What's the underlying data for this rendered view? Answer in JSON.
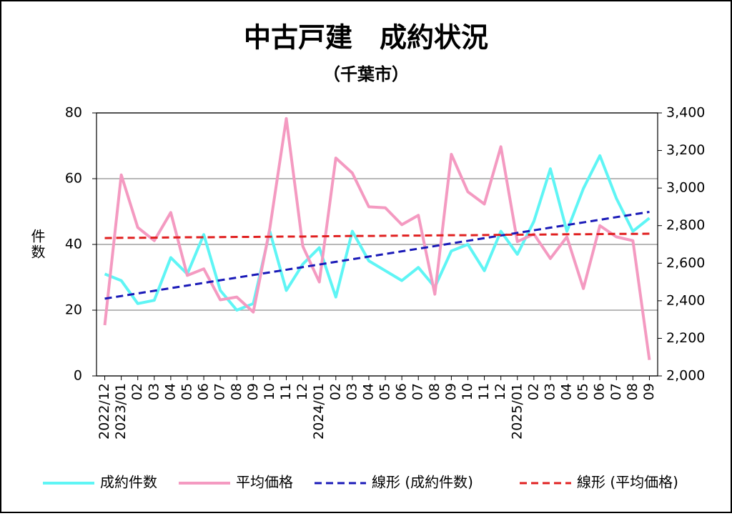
{
  "chart_data": {
    "type": "line",
    "title": "中古戸建　成約状況",
    "subtitle": "（千葉市）",
    "y_label": "件数",
    "categories": [
      "2022/12",
      "2023/01",
      "02",
      "03",
      "04",
      "05",
      "06",
      "07",
      "08",
      "09",
      "10",
      "11",
      "12",
      "2024/01",
      "02",
      "03",
      "04",
      "05",
      "06",
      "07",
      "08",
      "09",
      "10",
      "11",
      "12",
      "2025/01",
      "02",
      "03",
      "04",
      "05",
      "06",
      "07",
      "08",
      "09"
    ],
    "series": [
      {
        "name": "成約件数",
        "color": "#5ff5f5",
        "values": [
          31,
          29,
          22,
          23,
          36,
          31,
          43,
          26,
          20,
          22,
          44,
          26,
          34,
          39,
          24,
          44,
          35,
          32,
          29,
          33,
          27,
          38,
          40,
          32,
          44,
          37,
          47,
          63,
          44,
          57,
          67,
          54,
          44,
          48
        ]
      },
      {
        "name": "平均価格",
        "color": "#f49ac1",
        "axis": "y2",
        "values": [
          2270,
          3070,
          2790,
          2720,
          2870,
          2535,
          2570,
          2405,
          2420,
          2340,
          2785,
          3370,
          2690,
          2500,
          3160,
          3080,
          2900,
          2895,
          2805,
          2855,
          2435,
          3180,
          2980,
          2915,
          3220,
          2715,
          2755,
          2625,
          2740,
          2465,
          2800,
          2740,
          2720,
          2085
        ]
      },
      {
        "name": "線形 (成約件数)",
        "color": "#1a1ab8",
        "dashed": true,
        "values": [
          23.5,
          24.3,
          25.1,
          25.9,
          26.7,
          27.5,
          28.3,
          29.1,
          29.9,
          30.7,
          31.5,
          32.3,
          33.1,
          33.9,
          34.7,
          35.5,
          36.3,
          37.1,
          37.9,
          38.7,
          39.5,
          40.3,
          41.1,
          41.9,
          42.7,
          43.5,
          44.3,
          45.1,
          45.9,
          46.7,
          47.5,
          48.3,
          49.1,
          49.9
        ]
      },
      {
        "name": "線形 (平均価格)",
        "color": "#e02020",
        "dashed": true,
        "axis": "y2",
        "values": [
          2734,
          2735,
          2735,
          2736,
          2737,
          2738,
          2738,
          2739,
          2740,
          2740,
          2741,
          2742,
          2742,
          2743,
          2744,
          2745,
          2745,
          2746,
          2747,
          2747,
          2748,
          2749,
          2749,
          2750,
          2751,
          2752,
          2752,
          2753,
          2754,
          2754,
          2755,
          2756,
          2756,
          2757
        ]
      }
    ],
    "ylim": [
      0,
      80
    ],
    "yticks": [
      0,
      20,
      40,
      60,
      80
    ],
    "y2lim": [
      2000,
      3400
    ],
    "y2ticks": [
      {
        "value": 2000,
        "label": "2,000"
      },
      {
        "value": 2200,
        "label": "2,200"
      },
      {
        "value": 2400,
        "label": "2,400"
      },
      {
        "value": 2600,
        "label": "2,600"
      },
      {
        "value": 2800,
        "label": "2,800"
      },
      {
        "value": 3000,
        "label": "3,000"
      },
      {
        "value": 3200,
        "label": "3,200"
      },
      {
        "value": 3400,
        "label": "3,400"
      }
    ],
    "grid": true,
    "legend": "bottom"
  }
}
